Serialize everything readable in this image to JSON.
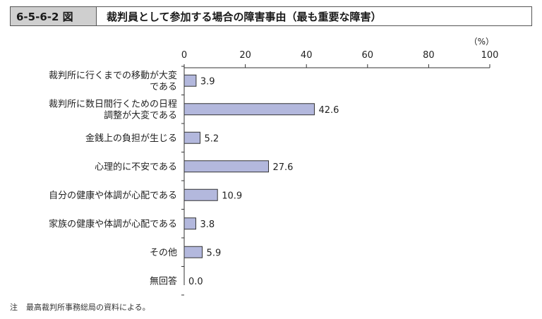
{
  "header": {
    "figure_number": "6-5-6-2 図",
    "title": "裁判員として参加する場合の障害事由（最も重要な障害）"
  },
  "chart_data": {
    "type": "bar",
    "orientation": "horizontal",
    "unit_label": "（%）",
    "xlim": [
      0,
      100
    ],
    "ticks": [
      0,
      20,
      40,
      60,
      80,
      100
    ],
    "grid": false,
    "bar_color": "#b3b8dd",
    "categories": [
      [
        "裁判所に行くまでの移動が大変",
        "である"
      ],
      [
        "裁判所に数日間行くための日程",
        "調整が大変である"
      ],
      [
        "金銭上の負担が生じる"
      ],
      [
        "心理的に不安である"
      ],
      [
        "自分の健康や体調が心配である"
      ],
      [
        "家族の健康や体調が心配である"
      ],
      [
        "その他"
      ],
      [
        "無回答"
      ]
    ],
    "values": [
      3.9,
      42.6,
      5.2,
      27.6,
      10.9,
      3.8,
      5.9,
      0.0
    ],
    "value_labels": [
      "3.9",
      "42.6",
      "5.2",
      "27.6",
      "10.9",
      "3.8",
      "5.9",
      "0.0"
    ]
  },
  "footer": {
    "note_mark": "注",
    "note_text": "最高裁判所事務総局の資料による。"
  }
}
